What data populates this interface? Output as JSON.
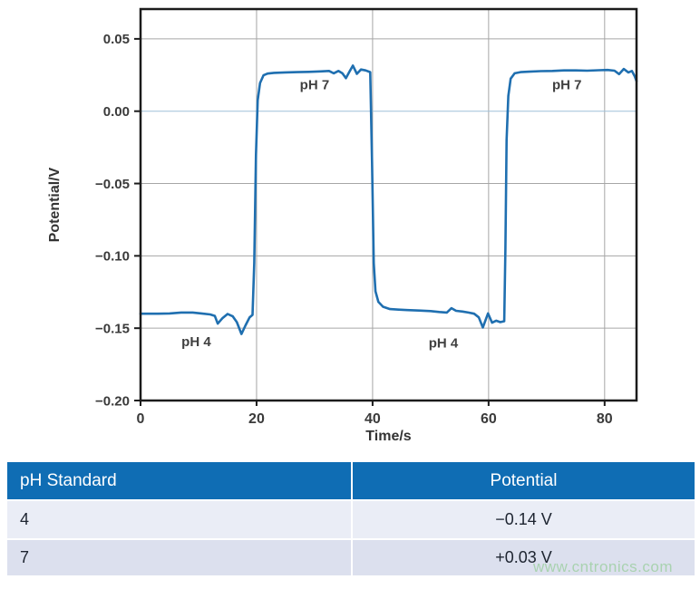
{
  "chart_data": {
    "type": "line",
    "title": "",
    "xlabel": "Time/s",
    "ylabel": "Potential/V",
    "xlim": [
      0,
      85.5
    ],
    "ylim": [
      -0.2,
      0.0706
    ],
    "grid": true,
    "xticks": [
      {
        "v": 0,
        "label": "0"
      },
      {
        "v": 20,
        "label": "20"
      },
      {
        "v": 40,
        "label": "40"
      },
      {
        "v": 60,
        "label": "60"
      },
      {
        "v": 80,
        "label": "80"
      }
    ],
    "yticks": [
      {
        "v": 0.05,
        "label": "0.05"
      },
      {
        "v": 0.0,
        "label": "0.00"
      },
      {
        "v": -0.05,
        "label": "−0.05"
      },
      {
        "v": -0.1,
        "label": "−0.10"
      },
      {
        "v": -0.15,
        "label": "−0.15"
      },
      {
        "v": -0.2,
        "label": "−0.20"
      }
    ],
    "line_color": "#1f6fb0",
    "grid_color": "#a6a6a6",
    "grid_zero_color": "#9fc0d8",
    "frame_color": "#1b1b1b",
    "annotations": [
      {
        "text": "pH 4",
        "x": 9.6,
        "y": -0.159
      },
      {
        "text": "pH 7",
        "x": 30.0,
        "y": 0.0185
      },
      {
        "text": "pH 4",
        "x": 52.2,
        "y": -0.16
      },
      {
        "text": "pH 7",
        "x": 73.5,
        "y": 0.0185
      }
    ],
    "series": [
      {
        "name": "electrode-potential",
        "points": [
          [
            0,
            -0.14
          ],
          [
            3,
            -0.14
          ],
          [
            5,
            -0.1398
          ],
          [
            7,
            -0.1392
          ],
          [
            9,
            -0.1392
          ],
          [
            10.5,
            -0.1398
          ],
          [
            12,
            -0.1405
          ],
          [
            12.8,
            -0.1415
          ],
          [
            13.3,
            -0.1468
          ],
          [
            14.1,
            -0.1432
          ],
          [
            15,
            -0.1402
          ],
          [
            15.9,
            -0.1418
          ],
          [
            16.6,
            -0.1458
          ],
          [
            17.4,
            -0.154
          ],
          [
            18.1,
            -0.148
          ],
          [
            18.8,
            -0.1425
          ],
          [
            19.3,
            -0.1408
          ],
          [
            19.6,
            -0.105
          ],
          [
            19.9,
            -0.03
          ],
          [
            20.2,
            0.0075
          ],
          [
            20.6,
            0.0195
          ],
          [
            21.2,
            0.0248
          ],
          [
            21.9,
            0.026
          ],
          [
            23,
            0.0265
          ],
          [
            25,
            0.0268
          ],
          [
            27,
            0.027
          ],
          [
            29,
            0.0272
          ],
          [
            31,
            0.0275
          ],
          [
            32.5,
            0.0278
          ],
          [
            33.3,
            0.0262
          ],
          [
            34.1,
            0.0278
          ],
          [
            34.8,
            0.0262
          ],
          [
            35.4,
            0.0228
          ],
          [
            36.0,
            0.0272
          ],
          [
            36.6,
            0.0315
          ],
          [
            37.3,
            0.0258
          ],
          [
            38.0,
            0.0288
          ],
          [
            38.8,
            0.0282
          ],
          [
            39.6,
            0.027
          ],
          [
            39.9,
            -0.035
          ],
          [
            40.2,
            -0.105
          ],
          [
            40.5,
            -0.1245
          ],
          [
            41.0,
            -0.1318
          ],
          [
            41.8,
            -0.1352
          ],
          [
            43,
            -0.1368
          ],
          [
            44.5,
            -0.1372
          ],
          [
            46,
            -0.1375
          ],
          [
            48,
            -0.1378
          ],
          [
            50,
            -0.1382
          ],
          [
            51.5,
            -0.1388
          ],
          [
            52.8,
            -0.1392
          ],
          [
            53.6,
            -0.1362
          ],
          [
            54.4,
            -0.138
          ],
          [
            55.5,
            -0.1385
          ],
          [
            56.5,
            -0.1392
          ],
          [
            57.5,
            -0.14
          ],
          [
            58.3,
            -0.1425
          ],
          [
            59.0,
            -0.1495
          ],
          [
            59.9,
            -0.1398
          ],
          [
            60.6,
            -0.1462
          ],
          [
            61.3,
            -0.1448
          ],
          [
            62.0,
            -0.1458
          ],
          [
            62.7,
            -0.1452
          ],
          [
            62.9,
            -0.095
          ],
          [
            63.1,
            -0.02
          ],
          [
            63.4,
            0.0105
          ],
          [
            63.8,
            0.0225
          ],
          [
            64.5,
            0.0262
          ],
          [
            65.5,
            0.027
          ],
          [
            67,
            0.0273
          ],
          [
            69,
            0.0277
          ],
          [
            71,
            0.0278
          ],
          [
            73,
            0.0282
          ],
          [
            75,
            0.0282
          ],
          [
            77,
            0.028
          ],
          [
            79,
            0.0283
          ],
          [
            80.5,
            0.0285
          ],
          [
            81.7,
            0.028
          ],
          [
            82.5,
            0.0256
          ],
          [
            83.3,
            0.0292
          ],
          [
            84.1,
            0.0268
          ],
          [
            84.7,
            0.0278
          ],
          [
            85.2,
            0.024
          ],
          [
            85.5,
            0.0208
          ]
        ]
      }
    ]
  },
  "table": {
    "headers": [
      "pH Standard",
      "Potential"
    ],
    "rows": [
      [
        "4",
        "−0.14 V"
      ],
      [
        "7",
        "+0.03 V"
      ]
    ],
    "header_bg": "#0f6db4",
    "row_bg_first": "#eaedf6",
    "row_bg_second": "#dce0ee"
  },
  "watermark": {
    "text": "www.cntronics.com",
    "color": "#a9d2b0"
  }
}
